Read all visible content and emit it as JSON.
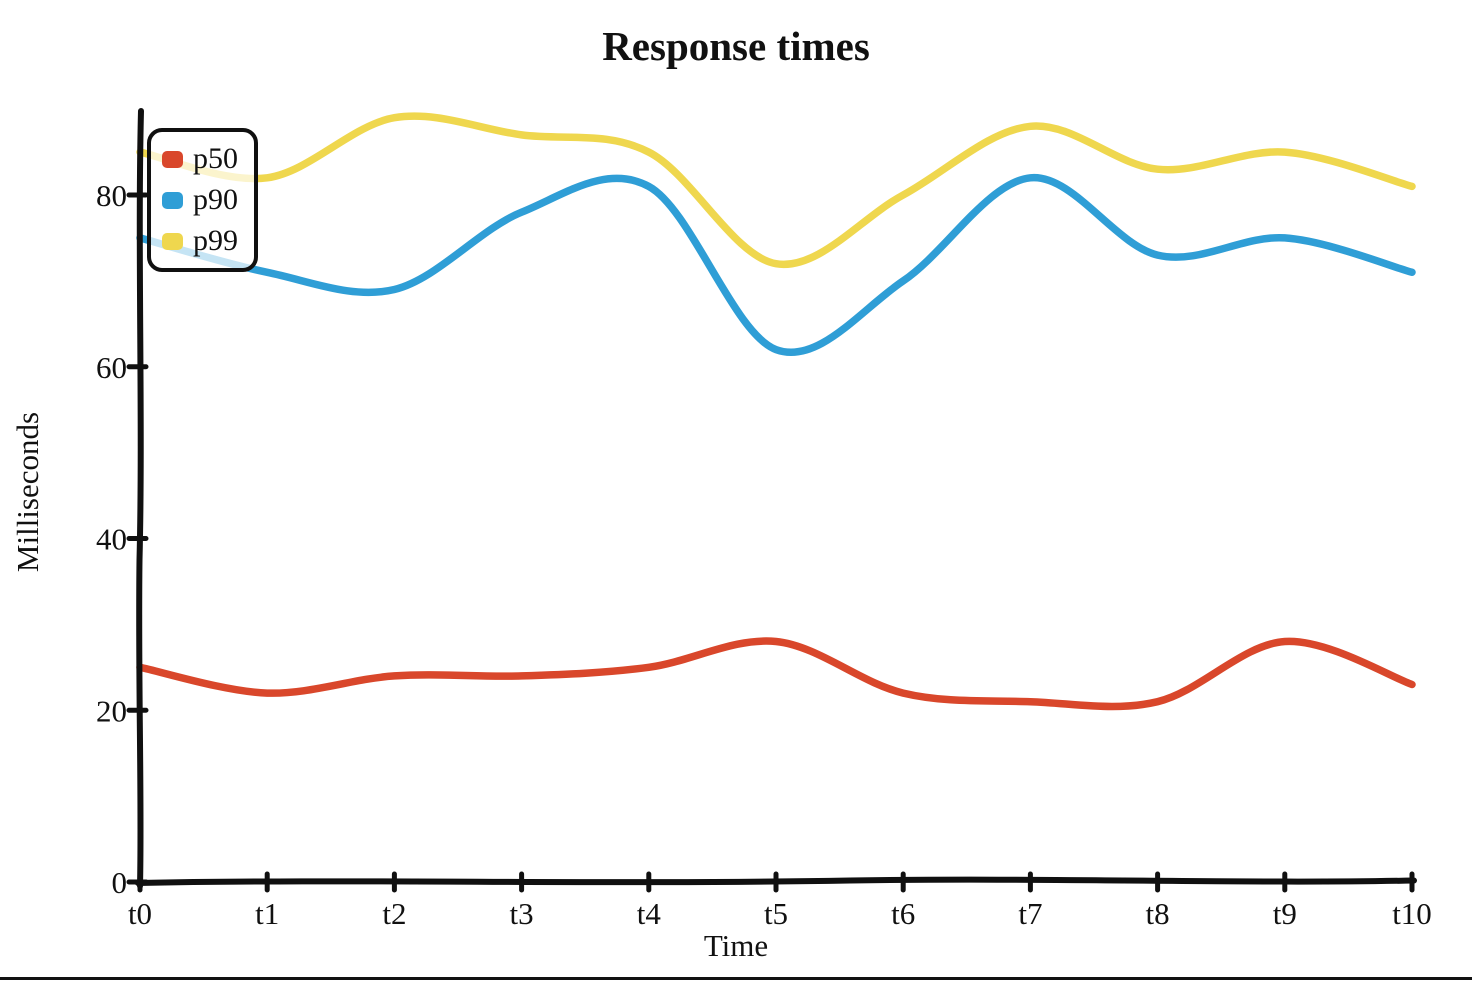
{
  "chart_data": {
    "type": "line",
    "title": "Response times",
    "xlabel": "Time",
    "ylabel": "Milliseconds",
    "categories": [
      "t0",
      "t1",
      "t2",
      "t3",
      "t4",
      "t5",
      "t6",
      "t7",
      "t8",
      "t9",
      "t10"
    ],
    "y_ticks": [
      0,
      20,
      40,
      60,
      80
    ],
    "ylim": [
      0,
      93
    ],
    "grid": false,
    "legend_position": "top-left",
    "style": "hand-drawn",
    "ink_color": "#101010",
    "series": [
      {
        "name": "p50",
        "color": "#d9472b",
        "values": [
          25,
          22,
          24,
          24,
          25,
          28,
          22,
          21,
          21,
          28,
          23
        ]
      },
      {
        "name": "p90",
        "color": "#2f9ed6",
        "values": [
          75,
          71,
          69,
          78,
          81,
          62,
          70,
          82,
          73,
          75,
          71
        ]
      },
      {
        "name": "p99",
        "color": "#efd74e",
        "values": [
          85,
          82,
          89,
          87,
          85,
          72,
          80,
          88,
          83,
          85,
          81
        ]
      }
    ]
  }
}
